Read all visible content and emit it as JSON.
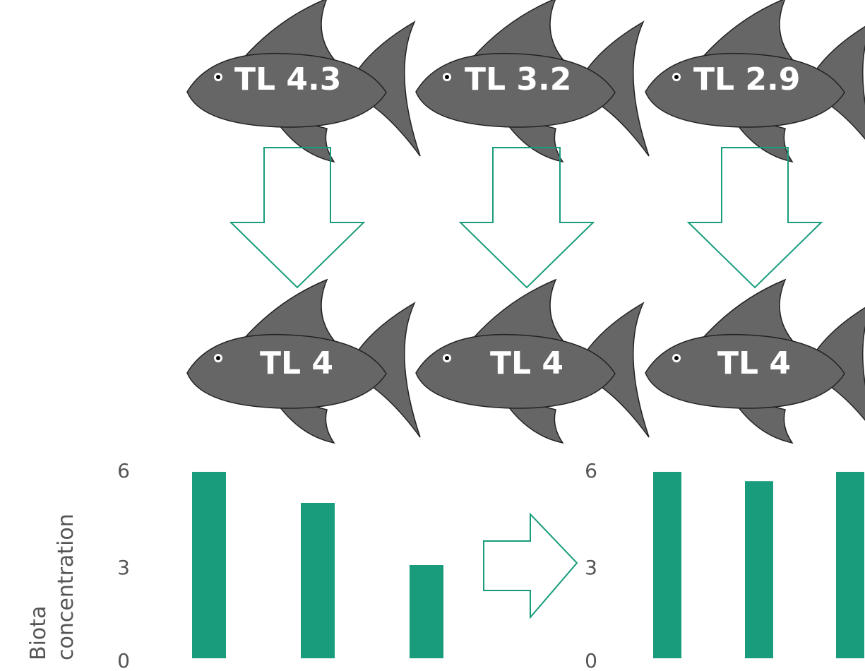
{
  "top_row": [
    {
      "label": "TL 4.3"
    },
    {
      "label": "TL 3.2"
    },
    {
      "label": "TL 2.9"
    }
  ],
  "bottom_row": [
    {
      "label": "TL 4"
    },
    {
      "label": "TL 4"
    },
    {
      "label": "TL 4"
    }
  ],
  "colors": {
    "fish_body": "#666666",
    "fish_outline": "#222222",
    "accent": "#189c7c",
    "label_text": "#ffffff",
    "axis_text": "#555555"
  },
  "chart_data": [
    {
      "type": "bar",
      "categories": [
        "TL 4.3",
        "TL 3.2",
        "TL 2.9"
      ],
      "values": [
        6,
        5,
        3
      ],
      "ylabel": "Biota concentration",
      "ylim": [
        0,
        6
      ],
      "yticks": [
        "0",
        "3",
        "6"
      ]
    },
    {
      "type": "bar",
      "categories": [
        "TL 4",
        "TL 4",
        "TL 4"
      ],
      "values": [
        6,
        5.7,
        6
      ],
      "ylabel": "",
      "ylim": [
        0,
        6
      ],
      "yticks": [
        "0",
        "3",
        "6"
      ]
    }
  ],
  "y_axis_label": "Biota concentration",
  "y_axis_label_lines": [
    "Biota",
    "concentration"
  ]
}
